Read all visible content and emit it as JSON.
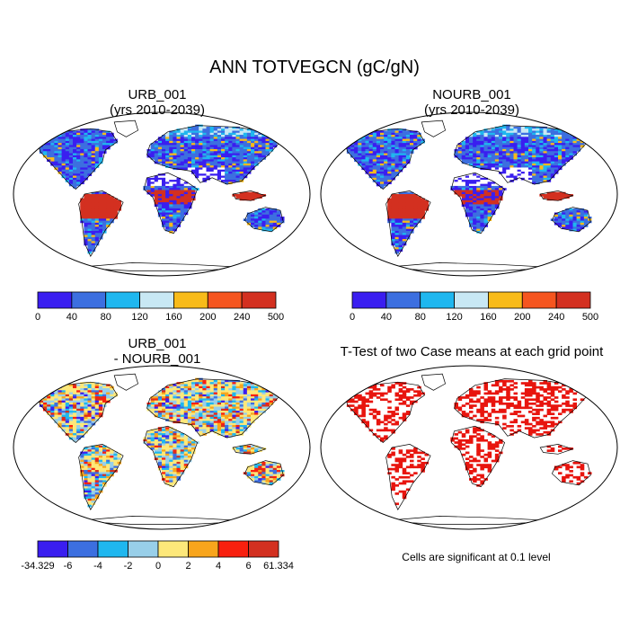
{
  "title": "ANN TOTVEGCN (gC/gN)",
  "panels": [
    {
      "id": "urb",
      "title_line1": "URB_001",
      "title_line2": "(yrs 2010-2039)"
    },
    {
      "id": "nourb",
      "title_line1": "NOURB_001",
      "title_line2": "(yrs 2010-2039)"
    },
    {
      "id": "diff",
      "title_line1": "URB_001",
      "title_line2": "- NOURB_001"
    },
    {
      "id": "ttest",
      "title_line1": "T-Test of two Case means at each grid point",
      "title_line2": ""
    }
  ],
  "colorbars": {
    "abs": {
      "labels": [
        "0",
        "40",
        "80",
        "120",
        "160",
        "200",
        "240",
        "500"
      ],
      "colors": [
        "#3a1ef0",
        "#3c6fe0",
        "#1fb7ef",
        "#c8e8f4",
        "#f8bb1a",
        "#f5551f",
        "#d33020"
      ]
    },
    "diff": {
      "labels": [
        "-34.329",
        "-6",
        "-4",
        "-2",
        "0",
        "2",
        "4",
        "6",
        "61.334"
      ],
      "colors": [
        "#3a1ef0",
        "#3c6fe0",
        "#1fb7ef",
        "#98cfe9",
        "#fde87a",
        "#f8a51c",
        "#f8200f",
        "#d33020"
      ]
    }
  },
  "ttest_color": "#e8150e",
  "note": "Cells are significant at 0.1 level"
}
